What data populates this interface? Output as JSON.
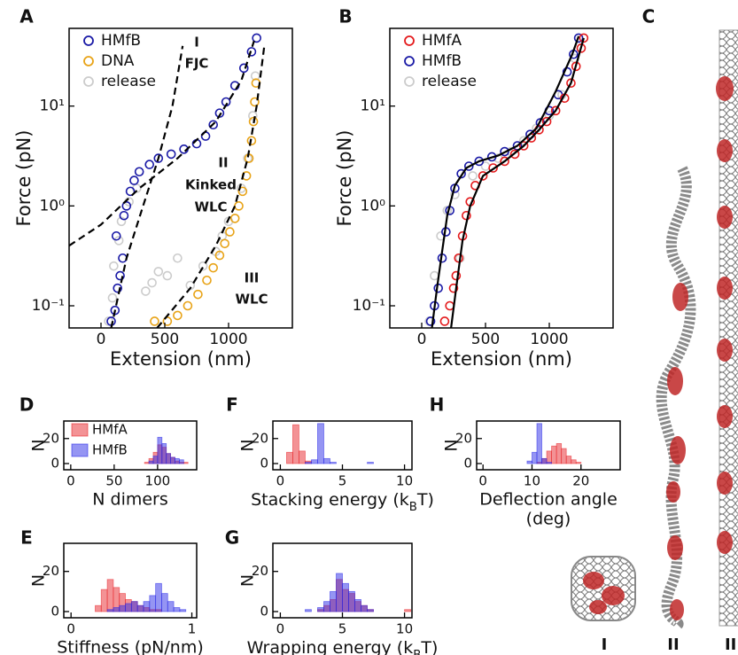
{
  "chart_data": [
    {
      "panel": "A",
      "type": "scatter",
      "xlabel": "Extension (nm)",
      "ylabel": "Force (pN)",
      "xlim": [
        -250,
        1500
      ],
      "xticks": [
        0,
        500,
        1000
      ],
      "ylim": [
        0.06,
        60
      ],
      "log_y": true,
      "yticks": [
        {
          "value": 0.1,
          "label": "10⁻¹"
        },
        {
          "value": 1,
          "label": "10⁰"
        },
        {
          "value": 10,
          "label": "10¹"
        }
      ],
      "legend": "upper left",
      "series": [
        {
          "name": "HMfB",
          "color": "#1a1aa6",
          "x": [
            80,
            110,
            130,
            150,
            170,
            120,
            180,
            200,
            230,
            260,
            300,
            380,
            450,
            550,
            650,
            750,
            820,
            880,
            930,
            980,
            1050,
            1120,
            1180,
            1220
          ],
          "values": [
            0.07,
            0.09,
            0.15,
            0.2,
            0.3,
            0.5,
            0.8,
            1.0,
            1.4,
            1.8,
            2.2,
            2.6,
            3.0,
            3.3,
            3.7,
            4.2,
            5.0,
            6.5,
            8.5,
            11,
            16,
            24,
            35,
            48
          ]
        },
        {
          "name": "DNA",
          "color": "#e8a317",
          "x": [
            420,
            520,
            600,
            680,
            760,
            830,
            880,
            930,
            970,
            1010,
            1050,
            1080,
            1110,
            1140,
            1160,
            1180,
            1195,
            1205,
            1215
          ],
          "values": [
            0.07,
            0.07,
            0.08,
            0.1,
            0.13,
            0.18,
            0.24,
            0.32,
            0.42,
            0.55,
            0.75,
            1.0,
            1.4,
            2.0,
            3.0,
            4.5,
            7,
            11,
            17
          ]
        },
        {
          "name": "release",
          "color": "#cccccc",
          "x": [
            60,
            90,
            100,
            140,
            160,
            220,
            280,
            350,
            400,
            450,
            520,
            600,
            700,
            800,
            900,
            950,
            1000,
            1100,
            1150,
            1190,
            1210
          ],
          "values": [
            0.07,
            0.12,
            0.25,
            0.45,
            0.7,
            1.1,
            1.5,
            0.14,
            0.17,
            0.22,
            0.2,
            0.3,
            0.16,
            0.25,
            0.35,
            0.5,
            0.7,
            1.5,
            3,
            8,
            20
          ]
        }
      ],
      "fits": [
        {
          "color": "#000000",
          "dash": true,
          "x": [
            80,
            200,
            330,
            450,
            560,
            640
          ],
          "values": [
            0.06,
            0.3,
            1,
            3,
            10,
            40
          ]
        },
        {
          "color": "#000000",
          "dash": true,
          "x": [
            -250,
            0,
            300,
            600,
            900,
            1100,
            1200
          ],
          "values": [
            0.4,
            0.65,
            1.5,
            3,
            7,
            18,
            45
          ]
        },
        {
          "color": "#000000",
          "dash": true,
          "x": [
            440,
            700,
            900,
            1050,
            1150,
            1220,
            1280
          ],
          "values": [
            0.06,
            0.15,
            0.4,
            1,
            3,
            10,
            40
          ]
        }
      ],
      "annotations": [
        "I",
        "FJC",
        "II",
        "Kinked",
        "WLC",
        "III",
        "WLC"
      ]
    },
    {
      "panel": "B",
      "type": "scatter",
      "xlabel": "Extension (nm)",
      "ylabel": "Force (pN)",
      "xlim": [
        -250,
        1500
      ],
      "xticks": [
        0,
        500,
        1000
      ],
      "ylim": [
        0.06,
        60
      ],
      "log_y": true,
      "yticks": [
        {
          "value": 0.1,
          "label": "10⁻¹"
        },
        {
          "value": 1,
          "label": "10⁰"
        },
        {
          "value": 10,
          "label": "10¹"
        }
      ],
      "legend": "upper left",
      "series": [
        {
          "name": "HMfA",
          "color": "#e41a1c",
          "x": [
            180,
            220,
            250,
            270,
            290,
            320,
            350,
            380,
            420,
            480,
            560,
            650,
            730,
            800,
            860,
            920,
            980,
            1050,
            1120,
            1170,
            1210,
            1250,
            1270
          ],
          "values": [
            0.07,
            0.1,
            0.15,
            0.2,
            0.3,
            0.5,
            0.8,
            1.1,
            1.6,
            2.0,
            2.4,
            2.8,
            3.3,
            4.0,
            4.8,
            5.8,
            7,
            9,
            12,
            17,
            25,
            38,
            48
          ]
        },
        {
          "name": "HMfB",
          "color": "#1a1aa6",
          "x": [
            70,
            100,
            130,
            160,
            190,
            220,
            260,
            310,
            370,
            450,
            550,
            650,
            750,
            850,
            930,
            1000,
            1070,
            1140,
            1190,
            1230
          ],
          "values": [
            0.07,
            0.1,
            0.15,
            0.3,
            0.55,
            0.9,
            1.5,
            2.1,
            2.5,
            2.8,
            3.1,
            3.5,
            4.0,
            5.2,
            6.8,
            9,
            13,
            22,
            33,
            48
          ]
        },
        {
          "name": "release",
          "color": "#cccccc",
          "x": [
            60,
            100,
            150,
            200,
            260,
            300,
            400,
            500,
            600,
            700,
            800,
            900,
            1000,
            1100,
            1200
          ],
          "values": [
            0.07,
            0.2,
            0.5,
            0.9,
            1.3,
            0.3,
            2.0,
            2.5,
            3,
            3.5,
            4.5,
            6,
            8,
            13,
            30
          ]
        }
      ],
      "fits": [
        {
          "color": "#000000",
          "dash": false,
          "x": [
            230,
            270,
            320,
            380,
            480,
            650,
            800,
            920,
            1050,
            1170,
            1270
          ],
          "values": [
            0.06,
            0.15,
            0.45,
            1.0,
            2.0,
            2.8,
            4.0,
            5.8,
            9,
            17,
            48
          ]
        },
        {
          "color": "#000000",
          "dash": false,
          "x": [
            80,
            120,
            160,
            200,
            260,
            350,
            450,
            600,
            750,
            900,
            1050,
            1180,
            1230
          ],
          "values": [
            0.06,
            0.15,
            0.35,
            0.8,
            1.6,
            2.4,
            2.8,
            3.2,
            4.0,
            6.0,
            14,
            33,
            50
          ]
        }
      ]
    },
    {
      "panel": "D",
      "type": "histogram",
      "xlabel": "N dimers",
      "ylabel": "N",
      "xlim": [
        -8,
        145
      ],
      "xticks": [
        0,
        50,
        100
      ],
      "ylim": [
        0,
        34
      ],
      "yticks": [
        0,
        20
      ],
      "legend": "upper left",
      "bins": [
        85,
        90,
        95,
        100,
        105,
        110,
        115,
        120,
        125,
        130,
        135
      ],
      "series": [
        {
          "name": "HMfA",
          "color": "#e8262b",
          "values": [
            1,
            4,
            9,
            15,
            13,
            8,
            5,
            2,
            1,
            1
          ]
        },
        {
          "name": "HMfB",
          "color": "#2b2be8",
          "values": [
            0,
            2,
            6,
            21,
            16,
            8,
            5,
            4,
            3,
            0
          ]
        }
      ]
    },
    {
      "panel": "E",
      "type": "histogram",
      "xlabel": "Stiffness (pN/nm)",
      "ylabel": "N",
      "xlim": [
        -0.06,
        1.04
      ],
      "xticks": [
        0,
        1
      ],
      "ylim": [
        0,
        34
      ],
      "yticks": [
        0,
        20
      ],
      "bins": [
        0.2,
        0.25,
        0.3,
        0.35,
        0.4,
        0.45,
        0.5,
        0.55,
        0.6,
        0.65,
        0.7,
        0.75,
        0.8,
        0.85,
        0.9,
        0.95
      ],
      "series": [
        {
          "color": "#e8262b",
          "values": [
            3,
            11,
            16,
            12,
            9,
            6,
            5,
            3,
            2,
            1,
            1,
            0,
            0,
            0,
            0
          ]
        },
        {
          "color": "#2b2be8",
          "values": [
            0,
            0,
            1,
            2,
            3,
            4,
            5,
            3,
            5,
            8,
            14,
            9,
            5,
            2,
            1
          ]
        }
      ]
    },
    {
      "panel": "F",
      "type": "histogram",
      "xlabel": [
        [
          "Stacking energy (k",
          "B",
          "T)"
        ]
      ],
      "ylabel": "N",
      "xlim": [
        -0.6,
        10.6
      ],
      "xticks": [
        0,
        5,
        10
      ],
      "ylim": [
        0,
        34
      ],
      "yticks": [
        0,
        20
      ],
      "bins": [
        0.5,
        1,
        1.5,
        2,
        2.5,
        3,
        3.5,
        4,
        4.5,
        5,
        5.5,
        6,
        6.5,
        7,
        7.5
      ],
      "series": [
        {
          "color": "#e8262b",
          "values": [
            9,
            31,
            10,
            2,
            0,
            0,
            0,
            0,
            0,
            0,
            0,
            0,
            0,
            0
          ]
        },
        {
          "color": "#2b2be8",
          "values": [
            0,
            0,
            0,
            1,
            3,
            32,
            4,
            1,
            0,
            0,
            0,
            0,
            0,
            1
          ]
        }
      ]
    },
    {
      "panel": "G",
      "type": "histogram",
      "xlabel": [
        [
          "Wrapping energy (k",
          "B",
          "T)"
        ]
      ],
      "ylabel": "N",
      "xlim": [
        -0.6,
        10.6
      ],
      "xticks": [
        0,
        5,
        10
      ],
      "ylim": [
        0,
        34
      ],
      "yticks": [
        0,
        20
      ],
      "bins": [
        2,
        2.5,
        3,
        3.5,
        4,
        4.5,
        5,
        5.5,
        6,
        6.5,
        7,
        7.5,
        8,
        8.5,
        9,
        9.5,
        10,
        10.5
      ],
      "series": [
        {
          "color": "#e8262b",
          "values": [
            0,
            0,
            1,
            3,
            6,
            16,
            11,
            9,
            5,
            3,
            1,
            0,
            0,
            0,
            0,
            0,
            1
          ]
        },
        {
          "color": "#2b2be8",
          "values": [
            1,
            0,
            2,
            5,
            10,
            19,
            14,
            10,
            6,
            3,
            1,
            0,
            0,
            0,
            0,
            0,
            0
          ]
        }
      ]
    },
    {
      "panel": "H",
      "type": "histogram",
      "xlabel": [
        "Deflection angle",
        "(deg)"
      ],
      "ylabel": "N",
      "xlim": [
        -1.3,
        28
      ],
      "xticks": [
        0,
        10,
        20
      ],
      "ylim": [
        0,
        34
      ],
      "yticks": [
        0,
        20
      ],
      "bins": [
        9,
        10,
        11,
        12,
        13,
        14,
        15,
        16,
        17,
        18,
        19,
        20
      ],
      "series": [
        {
          "color": "#e8262b",
          "values": [
            0,
            0,
            1,
            4,
            10,
            14,
            16,
            12,
            6,
            3,
            1
          ]
        },
        {
          "color": "#2b2be8",
          "values": [
            2,
            9,
            32,
            4,
            1,
            0,
            0,
            0,
            0,
            0,
            0
          ]
        }
      ]
    }
  ],
  "panel_c": {
    "label": "C",
    "structures": [
      "I",
      "II",
      "III"
    ]
  }
}
